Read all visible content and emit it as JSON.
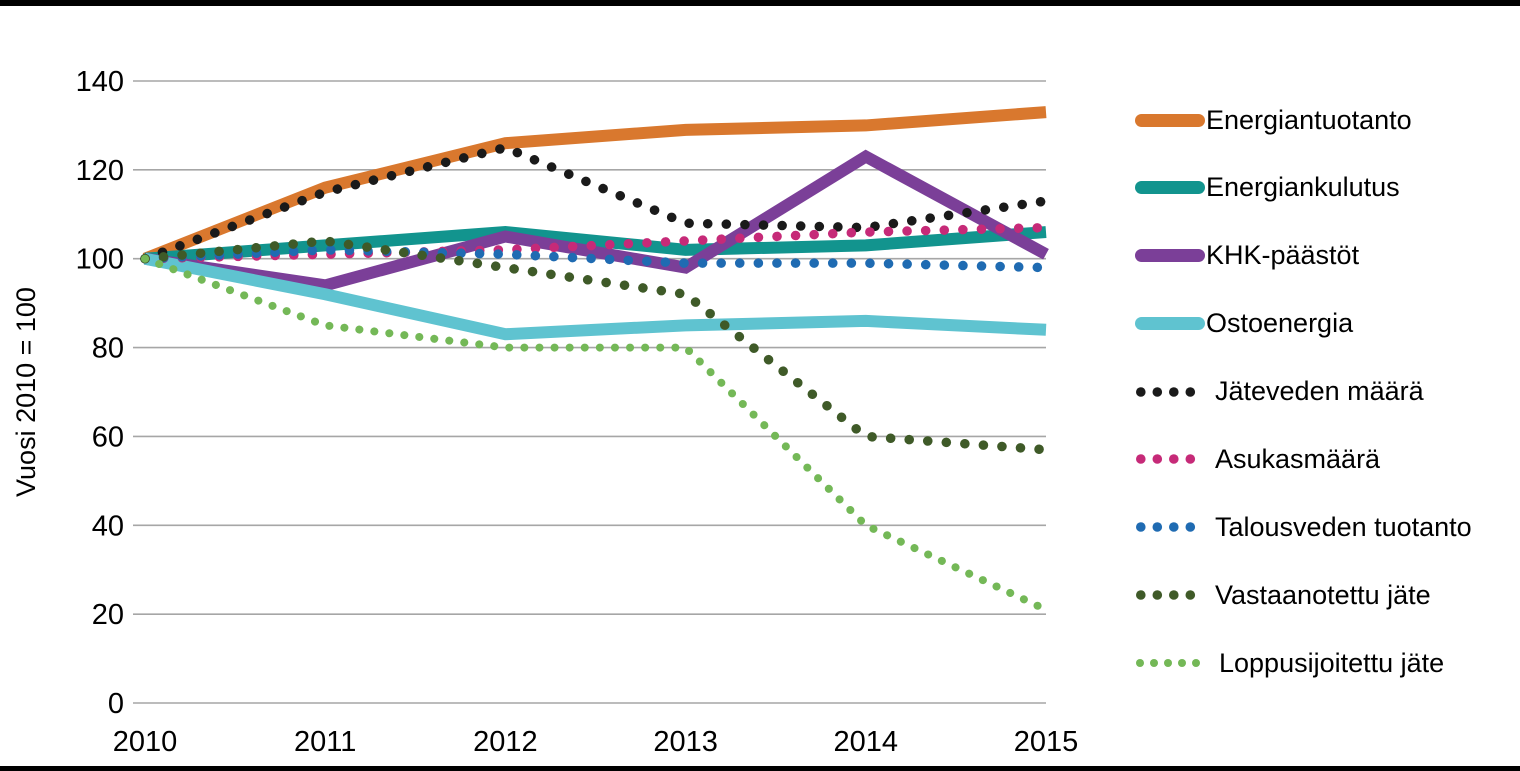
{
  "figure": {
    "background": "#FFFFFF",
    "top_border_color": "#000000",
    "bottom_border_color": "#000000",
    "gridline_color": "#A6A6A6",
    "text_color": "#000000"
  },
  "chart_data": {
    "type": "line",
    "title": "",
    "xlabel": "",
    "ylabel": "Vuosi 2010 = 100",
    "ylim": [
      0,
      140
    ],
    "ytick_interval": 20,
    "yticks": [
      "0",
      "20",
      "40",
      "60",
      "80",
      "100",
      "120",
      "140"
    ],
    "categories": [
      "2010",
      "2011",
      "2012",
      "2013",
      "2014",
      "2015"
    ],
    "grid": "horizontal",
    "legend_position": "right",
    "series": [
      {
        "name": "Energiantuotanto",
        "color": "#D9782E",
        "style": "solid",
        "legend_dots": 0,
        "values": [
          100,
          116,
          126,
          129,
          130,
          133
        ]
      },
      {
        "name": "Energiankulutus",
        "color": "#12948E",
        "style": "solid",
        "legend_dots": 0,
        "values": [
          100,
          103,
          106,
          102,
          103,
          106
        ]
      },
      {
        "name": "KHK-päästöt",
        "color": "#7B3F98",
        "style": "solid",
        "legend_dots": 0,
        "values": [
          100,
          94,
          105,
          98,
          123,
          101
        ]
      },
      {
        "name": "Ostoenergia",
        "color": "#5FC3D0",
        "style": "solid",
        "legend_dots": 0,
        "values": [
          100,
          92,
          83,
          85,
          86,
          84
        ]
      },
      {
        "name": "Jäteveden määrä",
        "color": "#1A1A1A",
        "style": "dotted",
        "legend_dots": 4,
        "values": [
          100,
          115,
          125,
          108,
          107,
          113
        ]
      },
      {
        "name": "Asukasmäärä",
        "color": "#C62A78",
        "style": "dotted",
        "legend_dots": 4,
        "values": [
          100,
          101,
          102,
          104,
          106,
          107
        ]
      },
      {
        "name": "Talousveden tuotanto",
        "color": "#1F6BB2",
        "style": "dotted",
        "legend_dots": 4,
        "values": [
          100,
          102,
          101,
          99,
          99,
          98
        ]
      },
      {
        "name": "Vastaanotettu jäte",
        "color": "#3F5A28",
        "style": "dotted",
        "legend_dots": 4,
        "values": [
          100,
          104,
          98,
          92,
          60,
          57
        ]
      },
      {
        "name": "Loppusijoitettu jäte",
        "color": "#74B857",
        "style": "dotted",
        "legend_dots": 5,
        "values": [
          100,
          85,
          80,
          80,
          40,
          21
        ]
      }
    ]
  }
}
